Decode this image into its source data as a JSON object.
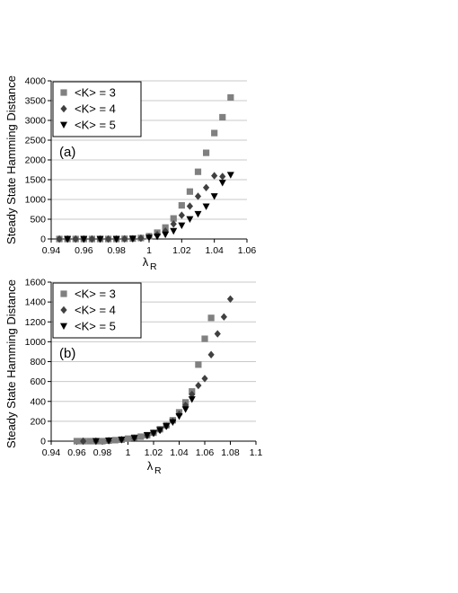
{
  "chart_data": [
    {
      "type": "scatter",
      "title": "",
      "panel_label": "(a)",
      "xlabel": "λ",
      "xlabel_sub": "R",
      "ylabel": "Steady State Hamming Distance",
      "xlim": [
        0.94,
        1.06
      ],
      "ylim": [
        0,
        4000
      ],
      "xticks": [
        "0.94",
        "0.96",
        "0.98",
        "1",
        "1.02",
        "1.04",
        "1.06"
      ],
      "yticks": [
        "0",
        "500",
        "1000",
        "1500",
        "2000",
        "2500",
        "3000",
        "3500",
        "4000"
      ],
      "grid": "horizontal",
      "legend_position": "top-left",
      "series": [
        {
          "name": "<K> = 3",
          "marker": "square",
          "color": "#808080",
          "x": [
            0.945,
            0.95,
            0.955,
            0.96,
            0.965,
            0.97,
            0.975,
            0.98,
            0.985,
            0.99,
            0.995,
            1.0,
            1.005,
            1.01,
            1.015,
            1.02,
            1.025,
            1.03,
            1.035,
            1.04,
            1.045,
            1.05
          ],
          "y": [
            0,
            0,
            0,
            0,
            0,
            0,
            0,
            0,
            5,
            10,
            25,
            70,
            160,
            290,
            520,
            850,
            1200,
            1700,
            2180,
            2680,
            3080,
            3580
          ]
        },
        {
          "name": "<K> = 4",
          "marker": "diamond",
          "color": "#404040",
          "x": [
            0.945,
            0.95,
            0.955,
            0.96,
            0.965,
            0.97,
            0.975,
            0.98,
            0.985,
            0.99,
            0.995,
            1.0,
            1.005,
            1.01,
            1.015,
            1.02,
            1.025,
            1.03,
            1.035,
            1.04,
            1.045
          ],
          "y": [
            0,
            0,
            0,
            0,
            0,
            0,
            0,
            0,
            3,
            8,
            20,
            50,
            110,
            200,
            380,
            600,
            830,
            1080,
            1300,
            1600,
            1580
          ]
        },
        {
          "name": "<K> = 5",
          "marker": "triangle-down",
          "color": "#000000",
          "x": [
            0.95,
            0.96,
            0.97,
            0.98,
            0.99,
            1.0,
            1.005,
            1.01,
            1.015,
            1.02,
            1.025,
            1.03,
            1.035,
            1.04,
            1.045,
            1.05
          ],
          "y": [
            0,
            0,
            0,
            0,
            5,
            30,
            60,
            110,
            200,
            340,
            500,
            630,
            820,
            1080,
            1420,
            1620
          ]
        }
      ]
    },
    {
      "type": "scatter",
      "title": "",
      "panel_label": "(b)",
      "xlabel": "λ",
      "xlabel_sub": "R",
      "ylabel": "Steady State Hamming Distance",
      "xlim": [
        0.94,
        1.1
      ],
      "ylim": [
        0,
        1600
      ],
      "xticks": [
        "0.94",
        "0.96",
        "0.98",
        "1",
        "1.02",
        "1.04",
        "1.06",
        "1.08",
        "1.1"
      ],
      "yticks": [
        "0",
        "200",
        "400",
        "600",
        "800",
        "1000",
        "1200",
        "1400",
        "1600"
      ],
      "grid": "horizontal",
      "legend_position": "top-left",
      "series": [
        {
          "name": "<K> = 3",
          "marker": "square",
          "color": "#808080",
          "x": [
            0.96,
            0.965,
            0.97,
            0.975,
            0.98,
            0.985,
            0.99,
            0.995,
            1.0,
            1.005,
            1.01,
            1.015,
            1.02,
            1.025,
            1.03,
            1.035,
            1.04,
            1.045,
            1.05,
            1.055,
            1.06,
            1.065
          ],
          "y": [
            0,
            0,
            0,
            0,
            0,
            5,
            10,
            15,
            25,
            35,
            45,
            60,
            85,
            120,
            160,
            210,
            290,
            390,
            500,
            770,
            1030,
            1240
          ]
        },
        {
          "name": "<K> = 4",
          "marker": "diamond",
          "color": "#404040",
          "x": [
            0.965,
            0.975,
            0.985,
            0.995,
            1.005,
            1.015,
            1.02,
            1.025,
            1.03,
            1.035,
            1.04,
            1.045,
            1.05,
            1.055,
            1.06,
            1.065,
            1.07,
            1.075,
            1.08
          ],
          "y": [
            0,
            0,
            5,
            15,
            30,
            55,
            80,
            110,
            150,
            200,
            270,
            360,
            470,
            560,
            630,
            870,
            1080,
            1250,
            1430
          ]
        },
        {
          "name": "<K> = 5",
          "marker": "triangle-down",
          "color": "#000000",
          "x": [
            0.975,
            0.985,
            0.995,
            1.005,
            1.015,
            1.02,
            1.025,
            1.03,
            1.035,
            1.04,
            1.045,
            1.05
          ],
          "y": [
            0,
            5,
            15,
            30,
            60,
            80,
            110,
            150,
            190,
            250,
            320,
            420
          ]
        }
      ]
    }
  ]
}
